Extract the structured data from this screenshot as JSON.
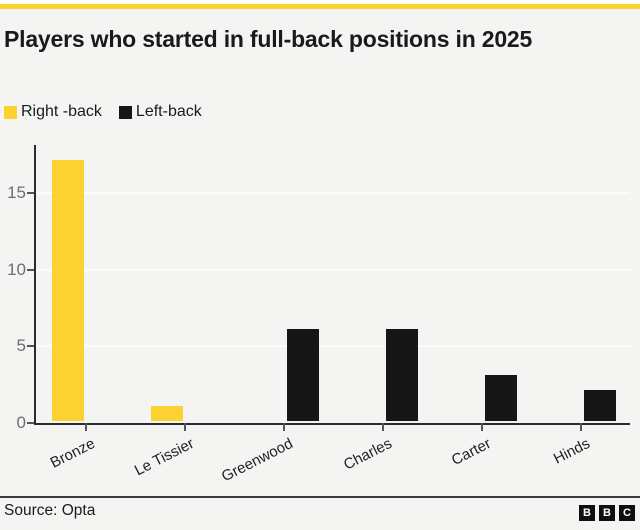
{
  "header": {
    "title": "Players who started in full-back positions in 2025"
  },
  "accent_color": "#fbd231",
  "chart_data": {
    "type": "bar",
    "title": "Players who started in full-back positions in 2025",
    "categories": [
      "Bronze",
      "Le Tissier",
      "Greenwood",
      "Charles",
      "Carter",
      "Hinds"
    ],
    "series": [
      {
        "name": "Right -back",
        "color": "#fbd231",
        "values": [
          17,
          1,
          0,
          0,
          0,
          0
        ]
      },
      {
        "name": "Left-back",
        "color": "#161616",
        "values": [
          0,
          0,
          6,
          6,
          3,
          2
        ]
      }
    ],
    "yticks": [
      0,
      5,
      10,
      15
    ],
    "ylim": [
      0,
      18.13
    ],
    "grid": "horizontal-white",
    "legend_position": "top-left",
    "bar_layout": "dodged"
  },
  "footer": {
    "source_label": "Source: Opta",
    "logo_blocks": [
      "B",
      "B",
      "C"
    ]
  }
}
